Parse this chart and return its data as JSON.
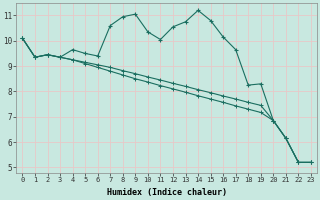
{
  "xlabel": "Humidex (Indice chaleur)",
  "bg_color": "#c8e8e0",
  "grid_color": "#b8d8d0",
  "line_color": "#1a6e60",
  "xlim": [
    -0.5,
    23.5
  ],
  "ylim": [
    4.8,
    11.5
  ],
  "yticks": [
    5,
    6,
    7,
    8,
    9,
    10,
    11
  ],
  "xticks": [
    0,
    1,
    2,
    3,
    4,
    5,
    6,
    7,
    8,
    9,
    10,
    11,
    12,
    13,
    14,
    15,
    16,
    17,
    18,
    19,
    20,
    21,
    22,
    23
  ],
  "line1_x": [
    0,
    1,
    2,
    3,
    4,
    5,
    6,
    7,
    8,
    9,
    10,
    11,
    12,
    13,
    14,
    15,
    16,
    17,
    18,
    19,
    20,
    21,
    22,
    23
  ],
  "line1_y": [
    10.1,
    9.35,
    9.45,
    9.35,
    9.65,
    9.5,
    9.4,
    10.6,
    10.95,
    11.05,
    10.35,
    10.05,
    10.55,
    10.75,
    11.2,
    10.8,
    10.15,
    9.65,
    8.25,
    8.3,
    6.85,
    6.15,
    5.2,
    5.2
  ],
  "line2_x": [
    0,
    1,
    2,
    3,
    4,
    5,
    6,
    7,
    8,
    9,
    10,
    11,
    12,
    13,
    14,
    15,
    16,
    17,
    18,
    19,
    20,
    21,
    22,
    23
  ],
  "line2_y": [
    10.1,
    9.35,
    9.45,
    9.35,
    9.25,
    9.15,
    9.05,
    8.95,
    8.82,
    8.7,
    8.57,
    8.45,
    8.32,
    8.2,
    8.07,
    7.95,
    7.82,
    7.7,
    7.57,
    7.45,
    6.85,
    6.15,
    5.2,
    5.2
  ],
  "line3_x": [
    0,
    1,
    2,
    3,
    4,
    5,
    6,
    7,
    8,
    9,
    10,
    11,
    12,
    13,
    14,
    15,
    16,
    17,
    18,
    19,
    20,
    21,
    22,
    23
  ],
  "line3_y": [
    10.1,
    9.35,
    9.45,
    9.35,
    9.25,
    9.1,
    8.95,
    8.8,
    8.65,
    8.5,
    8.37,
    8.23,
    8.1,
    7.97,
    7.83,
    7.7,
    7.57,
    7.43,
    7.3,
    7.17,
    6.85,
    6.15,
    5.2,
    5.2
  ]
}
